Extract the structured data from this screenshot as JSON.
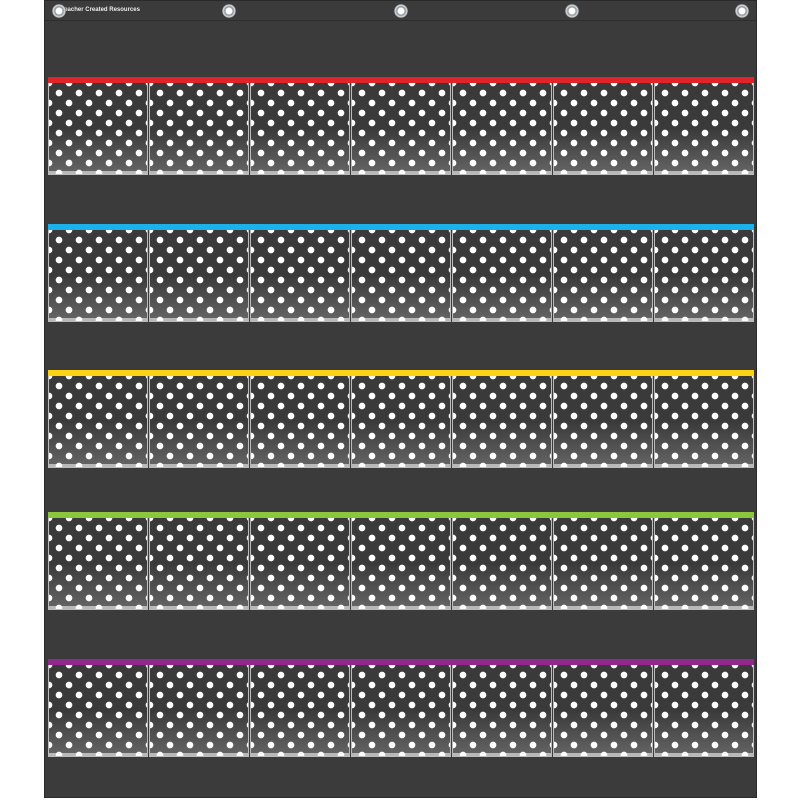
{
  "brand": "Teacher Created Resources",
  "grommet_count": 5,
  "pockets_per_row": 7,
  "rows": [
    {
      "color": "#e1242a"
    },
    {
      "color": "#1cb1e9"
    },
    {
      "color": "#fcd116"
    },
    {
      "color": "#8cc63f"
    },
    {
      "color": "#92278f"
    }
  ],
  "background_color": "#3b3b3b"
}
